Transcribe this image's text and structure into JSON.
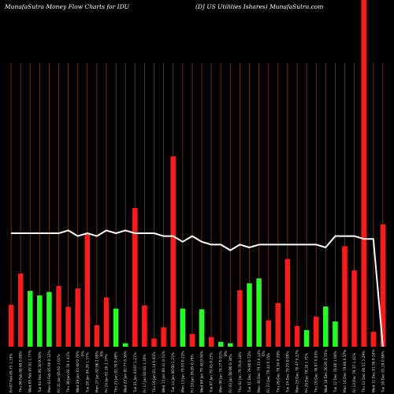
{
  "header": {
    "left": "MunafaSutra  Money Flow  Charts for IDU",
    "right": "(DJ US Utilities Ishares) MunafaSutra.com"
  },
  "chart_data": {
    "type": "bar",
    "title": "MunafaSutra  Money Flow  Charts for IDU",
    "subtitle": "(DJ US Utilities Ishares) MunafaSutra.com",
    "ylim": [
      0,
      100
    ],
    "grid": "vertical",
    "colors": {
      "up": "#22ff22",
      "down": "#ff1a1a",
      "line": "#ffffff",
      "grid": "#7a3d0c"
    },
    "bars": [
      {
        "label": "Fri 07 Feb  89.75 1.19%",
        "value": 12.1,
        "color": "down"
      },
      {
        "label": "Thu 06 Feb  88.69 0.89%",
        "value": 21.1,
        "color": "down"
      },
      {
        "label": "Wed 05 Feb  87.91 1.77%",
        "value": 16.1,
        "color": "up"
      },
      {
        "label": "Tue 04 Feb  86.38 0.56%",
        "value": 14.8,
        "color": "up"
      },
      {
        "label": "Mon 03 Feb  85.90 0.32%",
        "value": 15.8,
        "color": "up"
      },
      {
        "label": "Fri 31 Jan  85.63 1.01%",
        "value": 17.5,
        "color": "down"
      },
      {
        "label": "Thu 30 Jan  84.78 1.41%",
        "value": 11.5,
        "color": "down"
      },
      {
        "label": "Wed 29 Jan  83.60 0.79%",
        "value": 16.8,
        "color": "down"
      },
      {
        "label": "Tue 28 Jan  84.26 1.57%",
        "value": 32.5,
        "color": "down"
      },
      {
        "label": "Mon 27 Jan  82.96 2.09%",
        "value": 6.2,
        "color": "down"
      },
      {
        "label": "Fri 24 Jan  81.26 1.37%",
        "value": 14.2,
        "color": "down"
      },
      {
        "label": "Thu 23 Jan  82.39 0.46%",
        "value": 11.0,
        "color": "up"
      },
      {
        "label": "Wed 22 Jan  82.77 0.36%",
        "value": 1.0,
        "color": "up"
      },
      {
        "label": "Tue 21 Jan  83.07 1.27%",
        "value": 40.0,
        "color": "down"
      },
      {
        "label": "Fri 17 Jan  82.03 1.10%",
        "value": 11.9,
        "color": "down"
      },
      {
        "label": "Thu 16 Jan  81.14 0.91%",
        "value": 2.4,
        "color": "down"
      },
      {
        "label": "Wed 15 Jan  80.41 0.51%",
        "value": 5.6,
        "color": "down"
      },
      {
        "label": "Tue 14 Jan  80.00 1.23%",
        "value": 54.9,
        "color": "down"
      },
      {
        "label": "Mon 13 Jan  79.03 0.23%",
        "value": 11.0,
        "color": "up"
      },
      {
        "label": "Fri 10 Jan  78.85 0.79%",
        "value": 3.7,
        "color": "down"
      },
      {
        "label": "Wed 08 Jan  79.48 0.04%",
        "value": 10.8,
        "color": "up"
      },
      {
        "label": "Tue 07 Jan  79.45 0.23%",
        "value": 2.8,
        "color": "down"
      },
      {
        "label": "Mon 06 Jan  79.27 0.91%",
        "value": 1.4,
        "color": "up"
      },
      {
        "label": "Fri 03 Jan  80.00 0.30%",
        "value": 1.0,
        "color": "up"
      },
      {
        "label": "Thu 02 Jan  79.76 0.18%",
        "value": 16.3,
        "color": "down"
      },
      {
        "label": "Tue 31 Dec  79.90 0.72%",
        "value": 18.3,
        "color": "up"
      },
      {
        "label": "Mon 30 Dec  79.33 0.14%",
        "value": 19.7,
        "color": "up"
      },
      {
        "label": "Fri 27 Dec  79.44 0.15%",
        "value": 7.6,
        "color": "down"
      },
      {
        "label": "Thu 26 Dec  79.56 0.39%",
        "value": 12.6,
        "color": "down"
      },
      {
        "label": "Tue 24 Dec  79.25 0.99%",
        "value": 25.3,
        "color": "down"
      },
      {
        "label": "Mon 23 Dec  78.47 0.37%",
        "value": 6.0,
        "color": "down"
      },
      {
        "label": "Fri 20 Dec  78.18 1.71%",
        "value": 4.8,
        "color": "up"
      },
      {
        "label": "Thu 19 Dec  76.87 0.03%",
        "value": 8.7,
        "color": "down"
      },
      {
        "label": "Wed 18 Dec  76.85 2.55%",
        "value": 11.6,
        "color": "up"
      },
      {
        "label": "Tue 17 Dec  78.86 1.00%",
        "value": 7.3,
        "color": "up"
      },
      {
        "label": "Mon 16 Dec  79.66 0.37%",
        "value": 29.0,
        "color": "down"
      },
      {
        "label": "Fri 13 Dec  79.37 1.41%",
        "value": 22.0,
        "color": "down"
      },
      {
        "label": "Thu 12 Dec  80.51 1.29%",
        "value": 100,
        "color": "down"
      },
      {
        "label": "Wed 11 Dec  81.56 0.34%",
        "value": 4.3,
        "color": "down"
      },
      {
        "label": "Tue 10 Dec  81.28 0.96%",
        "value": 35.3,
        "color": "down"
      }
    ],
    "price_line": [
      70,
      70,
      70,
      70,
      70,
      70,
      71,
      69,
      70,
      69,
      71,
      70,
      71,
      70,
      70,
      70,
      69,
      69,
      67,
      69,
      67,
      66,
      66,
      64,
      66,
      65,
      66,
      66,
      66,
      66,
      66,
      66,
      66,
      65,
      69,
      69,
      69,
      68,
      68,
      0
    ],
    "zero_markers": [
      {
        "after_bar": 7,
        "label": "0%"
      },
      {
        "after_bar": 9,
        "label": "0%"
      },
      {
        "after_bar": 22,
        "label": "0%"
      },
      {
        "after_bar": 26,
        "label": "0%"
      }
    ]
  }
}
